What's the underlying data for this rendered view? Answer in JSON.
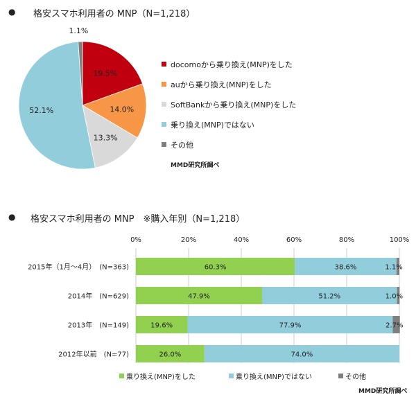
{
  "pie_chart_title": "格安スマホ利用者の MNP（N=1,218）",
  "bar_chart_title": "格安スマホ利用者の MNP　※購入年別（N=1,218）",
  "bullet": "●",
  "credit": "MMD研究所調べ",
  "chart_data": [
    {
      "type": "pie",
      "title": "格安スマホ利用者の MNP（N=1,218）",
      "labels": [
        "docomoから乗り換え(MNP)をした",
        "auから乗り換え(MNP)をした",
        "SoftBankから乗り換え(MNP)をした",
        "乗り換え(MNP)ではない",
        "その他"
      ],
      "values": [
        19.5,
        14.0,
        13.3,
        52.1,
        1.1
      ],
      "value_labels": [
        "19.5%",
        "14.0%",
        "13.3%",
        "52.1%",
        "1.1%"
      ],
      "colors": [
        "#c0000f",
        "#f79646",
        "#d9d9d9",
        "#92cddc",
        "#7f7f7f"
      ],
      "legend_position": "right"
    },
    {
      "type": "bar",
      "stacked": true,
      "orientation": "horizontal",
      "title": "格安スマホ利用者の MNP　※購入年別（N=1,218）",
      "categories": [
        "2015年（1月～4月）　(N=363)",
        "2014年　(N=629)",
        "2013年　(N=149)",
        "2012年以前　(N=77)"
      ],
      "xlim": [
        0,
        100
      ],
      "ticks": [
        "0%",
        "20%",
        "40%",
        "60%",
        "80%",
        "100%"
      ],
      "series": [
        {
          "name": "乗り換え(MNP)をした",
          "color": "#92d050",
          "values": [
            60.3,
            47.9,
            19.6,
            26.0
          ],
          "labels": [
            "60.3%",
            "47.9%",
            "19.6%",
            "26.0%"
          ]
        },
        {
          "name": "乗り換え(MNP)ではない",
          "color": "#92cddc",
          "values": [
            38.6,
            51.2,
            77.9,
            74.0
          ],
          "labels": [
            "38.6%",
            "51.2%",
            "77.9%",
            "74.0%"
          ]
        },
        {
          "name": "その他",
          "color": "#7f7f7f",
          "values": [
            1.1,
            1.0,
            2.7,
            0.0
          ],
          "labels": [
            "1.1%",
            "1.0%",
            "2.7%",
            ""
          ]
        }
      ],
      "legend_position": "bottom"
    }
  ]
}
